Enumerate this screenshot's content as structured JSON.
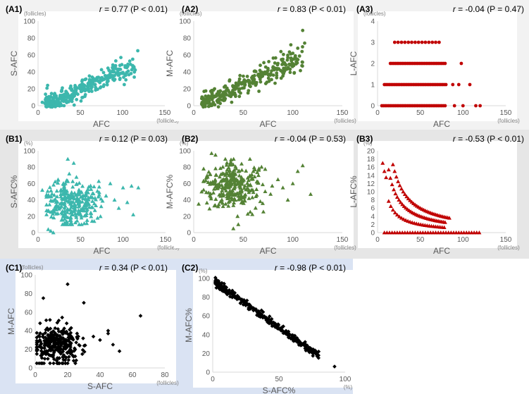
{
  "rows": [
    {
      "name": "row-a",
      "bg": "#f2f2f2"
    },
    {
      "name": "row-b",
      "bg": "#e6e6e6"
    },
    {
      "name": "row-c",
      "bg": "#dae3f3"
    }
  ],
  "chart_data": [
    {
      "id": "A1",
      "label": "(A1)",
      "stat": "r = 0.77 (P < 0.01)",
      "type": "scatter",
      "marker": "circle",
      "color": "#3cb7ad",
      "xlabel": "AFC",
      "ylabel": "S-AFC",
      "x_unit": "(follicles)",
      "y_unit": "(follicles)",
      "xlim": [
        0,
        150
      ],
      "ylim": [
        0,
        100
      ],
      "xticks": [
        0,
        50,
        100,
        150
      ],
      "yticks": [
        0,
        20,
        40,
        60,
        80,
        100
      ],
      "trend": {
        "x": [
          8,
          115
        ],
        "slope": 0.42,
        "intercept": -2,
        "spread": 6
      },
      "n": 300,
      "seed": 11,
      "points": [
        [
          5,
          4
        ],
        [
          8,
          3
        ],
        [
          10,
          2
        ],
        [
          12,
          5
        ],
        [
          15,
          6
        ],
        [
          18,
          7
        ],
        [
          20,
          5
        ],
        [
          22,
          9
        ],
        [
          25,
          8
        ],
        [
          28,
          12
        ],
        [
          30,
          10
        ],
        [
          35,
          14
        ],
        [
          40,
          13
        ],
        [
          45,
          18
        ],
        [
          50,
          20
        ],
        [
          55,
          24
        ],
        [
          60,
          27
        ],
        [
          65,
          28
        ],
        [
          70,
          30
        ],
        [
          75,
          33
        ],
        [
          80,
          35
        ],
        [
          85,
          37
        ],
        [
          90,
          40
        ],
        [
          95,
          42
        ],
        [
          100,
          39
        ],
        [
          105,
          45
        ],
        [
          110,
          38
        ],
        [
          118,
          65
        ],
        [
          112,
          55
        ],
        [
          98,
          57
        ],
        [
          92,
          53
        ],
        [
          88,
          45
        ],
        [
          102,
          25
        ]
      ]
    },
    {
      "id": "A2",
      "label": "(A2)",
      "stat": "r = 0.83 (P < 0.01)",
      "type": "scatter",
      "marker": "circle",
      "color": "#548235",
      "xlabel": "AFC",
      "ylabel": "M-AFC",
      "x_unit": "(follicles)",
      "y_unit": "(follicles)",
      "xlim": [
        0,
        150
      ],
      "ylim": [
        0,
        100
      ],
      "xticks": [
        0,
        50,
        100,
        150
      ],
      "yticks": [
        0,
        20,
        40,
        60,
        80,
        100
      ],
      "trend": {
        "x": [
          8,
          110
        ],
        "slope": 0.52,
        "intercept": -1,
        "spread": 6
      },
      "n": 300,
      "seed": 23,
      "points": [
        [
          8,
          2
        ],
        [
          10,
          5
        ],
        [
          15,
          8
        ],
        [
          20,
          10
        ],
        [
          25,
          13
        ],
        [
          30,
          16
        ],
        [
          35,
          18
        ],
        [
          40,
          22
        ],
        [
          45,
          24
        ],
        [
          50,
          28
        ],
        [
          55,
          30
        ],
        [
          60,
          33
        ],
        [
          65,
          36
        ],
        [
          70,
          38
        ],
        [
          75,
          42
        ],
        [
          80,
          45
        ],
        [
          85,
          50
        ],
        [
          90,
          55
        ],
        [
          95,
          57
        ],
        [
          100,
          62
        ],
        [
          105,
          68
        ],
        [
          110,
          89
        ],
        [
          112,
          74
        ],
        [
          98,
          72
        ],
        [
          88,
          64
        ]
      ]
    },
    {
      "id": "A3",
      "label": "(A3)",
      "stat": "r = -0.04 (P = 0.47)",
      "type": "scatter",
      "marker": "circle",
      "color": "#c00000",
      "xlabel": "AFC",
      "ylabel": "L-AFC",
      "x_unit": "(follicles)",
      "y_unit": "(follicles)",
      "xlim": [
        0,
        150
      ],
      "ylim": [
        0,
        4
      ],
      "xticks": [
        0,
        50,
        100,
        150
      ],
      "yticks": [
        0,
        1,
        2,
        3,
        4
      ],
      "levels": [
        {
          "y": 0,
          "x_from": 5,
          "x_to": 80,
          "step": 2,
          "extra": [
            90,
            100,
            115,
            120
          ]
        },
        {
          "y": 1,
          "x_from": 8,
          "x_to": 80,
          "step": 2,
          "extra": [
            88,
            95,
            108
          ]
        },
        {
          "y": 2,
          "x_from": 15,
          "x_to": 80,
          "step": 2,
          "extra": [
            98
          ]
        },
        {
          "y": 3,
          "x_from": 20,
          "x_to": 72,
          "step": 4,
          "extra": []
        }
      ]
    },
    {
      "id": "B1",
      "label": "(B1)",
      "stat": "r = 0.12 (P = 0.03)",
      "type": "scatter",
      "marker": "triangle",
      "color": "#3cb7ad",
      "xlabel": "AFC",
      "ylabel": "S-AFC%",
      "x_unit": "(follicles)",
      "y_unit": "(%)",
      "xlim": [
        0,
        150
      ],
      "ylim": [
        0,
        100
      ],
      "xticks": [
        0,
        50,
        100,
        150
      ],
      "yticks": [
        0,
        20,
        40,
        60,
        80,
        100
      ],
      "cloud": {
        "x": [
          10,
          80
        ],
        "y": [
          10,
          75
        ],
        "center": [
          40,
          38
        ],
        "spread": [
          15,
          14
        ]
      },
      "n": 300,
      "seed": 37,
      "points": [
        [
          5,
          52
        ],
        [
          12,
          4
        ],
        [
          15,
          2
        ],
        [
          18,
          0
        ],
        [
          35,
          90
        ],
        [
          42,
          85
        ],
        [
          100,
          55
        ],
        [
          110,
          57
        ],
        [
          118,
          55
        ],
        [
          90,
          40
        ],
        [
          95,
          30
        ],
        [
          105,
          37
        ],
        [
          112,
          22
        ],
        [
          85,
          60
        ],
        [
          80,
          45
        ]
      ]
    },
    {
      "id": "B2",
      "label": "(B2)",
      "stat": "r = -0.04 (P = 0.53)",
      "type": "scatter",
      "marker": "triangle",
      "color": "#548235",
      "xlabel": "AFC",
      "ylabel": "M-AFC%",
      "x_unit": "(follicles)",
      "y_unit": "(%)",
      "xlim": [
        0,
        150
      ],
      "ylim": [
        0,
        100
      ],
      "xticks": [
        0,
        50,
        100,
        150
      ],
      "yticks": [
        0,
        20,
        40,
        60,
        80,
        100
      ],
      "cloud": {
        "x": [
          10,
          85
        ],
        "y": [
          20,
          90
        ],
        "center": [
          40,
          58
        ],
        "spread": [
          15,
          14
        ]
      },
      "n": 300,
      "seed": 41,
      "points": [
        [
          18,
          97
        ],
        [
          22,
          95
        ],
        [
          40,
          5
        ],
        [
          45,
          10
        ],
        [
          5,
          35
        ],
        [
          8,
          50
        ],
        [
          110,
          82
        ],
        [
          118,
          47
        ],
        [
          100,
          60
        ],
        [
          105,
          75
        ],
        [
          95,
          40
        ],
        [
          85,
          65
        ],
        [
          90,
          55
        ]
      ]
    },
    {
      "id": "B3",
      "label": "(B3)",
      "stat": "r = -0.53 (P < 0.01)",
      "type": "scatter",
      "marker": "triangle",
      "color": "#c00000",
      "xlabel": "AFC",
      "ylabel": "L-AFC%",
      "x_unit": "(follicles)",
      "y_unit": "(%)",
      "xlim": [
        0,
        150
      ],
      "ylim": [
        0,
        20
      ],
      "xticks": [
        0,
        50,
        100,
        150
      ],
      "yticks": [
        0,
        2,
        4,
        6,
        8,
        10,
        12,
        14,
        16,
        18,
        20
      ],
      "curves": [
        {
          "k": 300,
          "x_from": 18,
          "x_to": 85,
          "step": 2
        },
        {
          "k": 200,
          "x_from": 13,
          "x_to": 80,
          "step": 2
        },
        {
          "k": 100,
          "x_from": 13,
          "x_to": 80,
          "step": 2.5
        }
      ],
      "zero_row": {
        "x_from": 8,
        "x_to": 120,
        "step": 3
      },
      "points": [
        [
          6,
          17
        ],
        [
          8,
          15
        ],
        [
          10,
          13.5
        ]
      ]
    },
    {
      "id": "C1",
      "label": "(C1)",
      "stat": "r = 0.34 (P < 0.01)",
      "type": "scatter",
      "marker": "diamond",
      "color": "#000000",
      "xlabel": "S-AFC",
      "ylabel": "M-AFC",
      "x_unit": "(follicles)",
      "y_unit": "(follicles)",
      "xlim": [
        0,
        80
      ],
      "ylim": [
        0,
        100
      ],
      "xticks": [
        0,
        20,
        40,
        60,
        80
      ],
      "yticks": [
        0,
        20,
        40,
        60,
        80,
        100
      ],
      "cloud": {
        "x": [
          1,
          40
        ],
        "y": [
          5,
          65
        ],
        "center": [
          14,
          24
        ],
        "spread": [
          8,
          11
        ]
      },
      "n": 300,
      "seed": 53,
      "points": [
        [
          20,
          90
        ],
        [
          30,
          70
        ],
        [
          45,
          40
        ],
        [
          45,
          37
        ],
        [
          65,
          56
        ],
        [
          52,
          18
        ],
        [
          48,
          25
        ],
        [
          5,
          75
        ],
        [
          3,
          48
        ],
        [
          40,
          30
        ]
      ]
    },
    {
      "id": "C2",
      "label": "(C2)",
      "stat": "r = -0.98 (P < 0.01)",
      "type": "scatter",
      "marker": "diamond",
      "color": "#000000",
      "xlabel": "S-AFC%",
      "ylabel": "M-AFC%",
      "x_unit": "(%)",
      "y_unit": "(%)",
      "xlim": [
        0,
        100
      ],
      "ylim": [
        0,
        100
      ],
      "xticks": [
        0,
        50,
        100
      ],
      "yticks": [
        0,
        20,
        40,
        60,
        80,
        100
      ],
      "trend": {
        "x": [
          2,
          80
        ],
        "slope": -1.01,
        "intercept": 98,
        "spread": 1.8
      },
      "n": 300,
      "seed": 67,
      "points": [
        [
          2,
          96
        ],
        [
          92,
          6
        ],
        [
          78,
          20
        ],
        [
          80,
          22
        ]
      ]
    }
  ]
}
